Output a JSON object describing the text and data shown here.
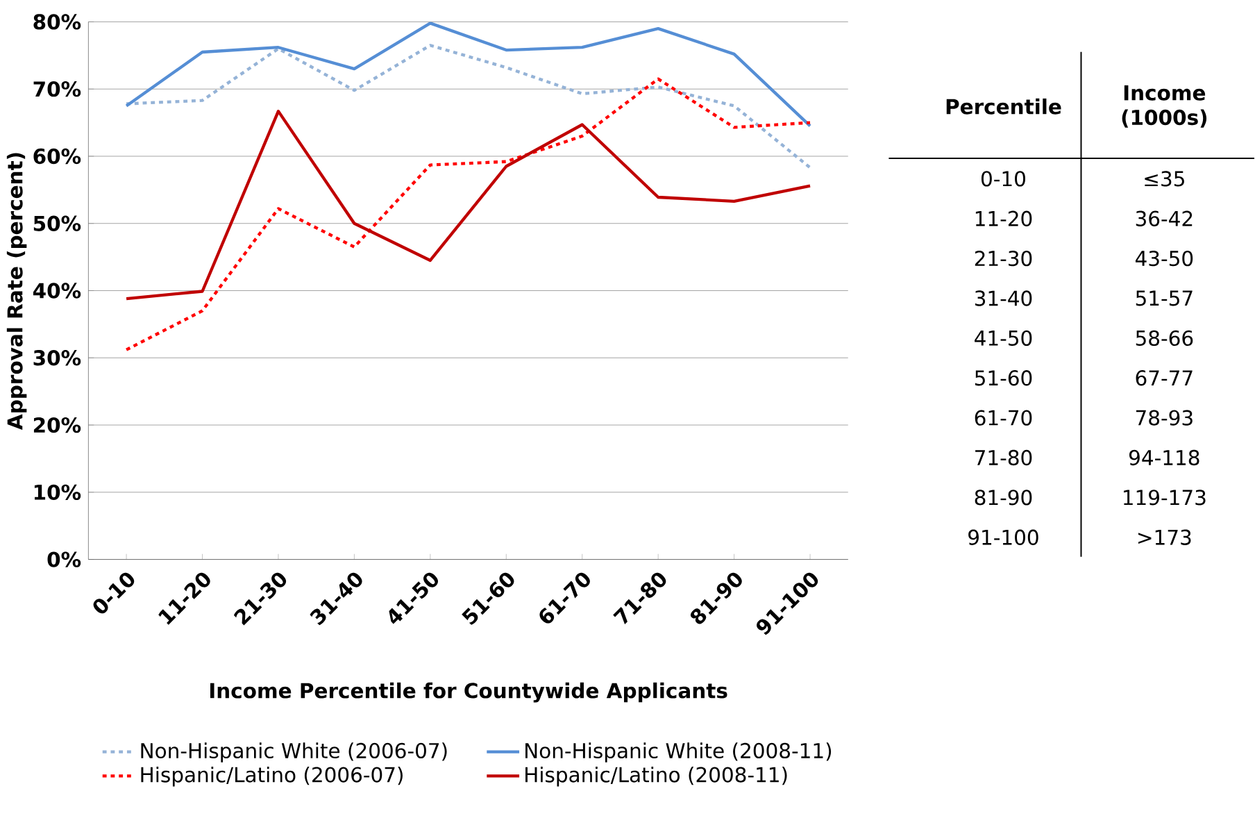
{
  "chart_data": [
    {
      "type": "line",
      "xlabel": "Income Percentile for Countywide Applicants",
      "ylabel": "Approval Rate (percent)",
      "categories": [
        "0-10",
        "11-20",
        "21-30",
        "31-40",
        "41-50",
        "51-60",
        "61-70",
        "71-80",
        "81-90",
        "91-100"
      ],
      "ylim": [
        0,
        80
      ],
      "yticks": [
        {
          "value": 0,
          "label": "0%"
        },
        {
          "value": 10,
          "label": "10%"
        },
        {
          "value": 20,
          "label": "20%"
        },
        {
          "value": 30,
          "label": "30%"
        },
        {
          "value": 40,
          "label": "40%"
        },
        {
          "value": 50,
          "label": "50%"
        },
        {
          "value": 60,
          "label": "60%"
        },
        {
          "value": 70,
          "label": "70%"
        },
        {
          "value": 80,
          "label": "80%"
        }
      ],
      "grid": "y",
      "legend": "bottom",
      "marker": "none",
      "series": [
        {
          "name": "Non-Hispanic White (2006-07)",
          "color": "#95b3d7",
          "line_style": "dashed",
          "values": [
            67.8,
            68.3,
            76,
            69.8,
            76.5,
            73.2,
            69.3,
            70.3,
            67.5,
            58.3
          ]
        },
        {
          "name": "Non-Hispanic White (2008-11)",
          "color": "#558ed5",
          "line_style": "solid",
          "values": [
            67.5,
            75.5,
            76.2,
            73,
            79.8,
            75.8,
            76.2,
            79,
            75.2,
            64.5
          ]
        },
        {
          "name": "Hispanic/Latino (2006-07)",
          "color": "#ff0000",
          "line_style": "dashed",
          "values": [
            31.2,
            37,
            52.2,
            46.5,
            58.7,
            59.2,
            63,
            71.5,
            64.3,
            65
          ]
        },
        {
          "name": "Hispanic/Latino (2008-11)",
          "color": "#c00000",
          "line_style": "solid",
          "values": [
            38.8,
            39.9,
            66.7,
            50,
            44.5,
            58.5,
            64.7,
            53.9,
            53.3,
            55.6
          ]
        }
      ]
    },
    {
      "type": "other",
      "annotations": [
        "Percentile",
        "Income (1000s)",
        "0-10",
        "≤35",
        "11-20",
        "36-42",
        "21-30",
        "43-50",
        "31-40",
        "51-57",
        "41-50",
        "58-66",
        "51-60",
        "67-77",
        "61-70",
        "78-93",
        "71-80",
        "94-118",
        "81-90",
        "119-173",
        "91-100",
        ">173"
      ]
    }
  ]
}
